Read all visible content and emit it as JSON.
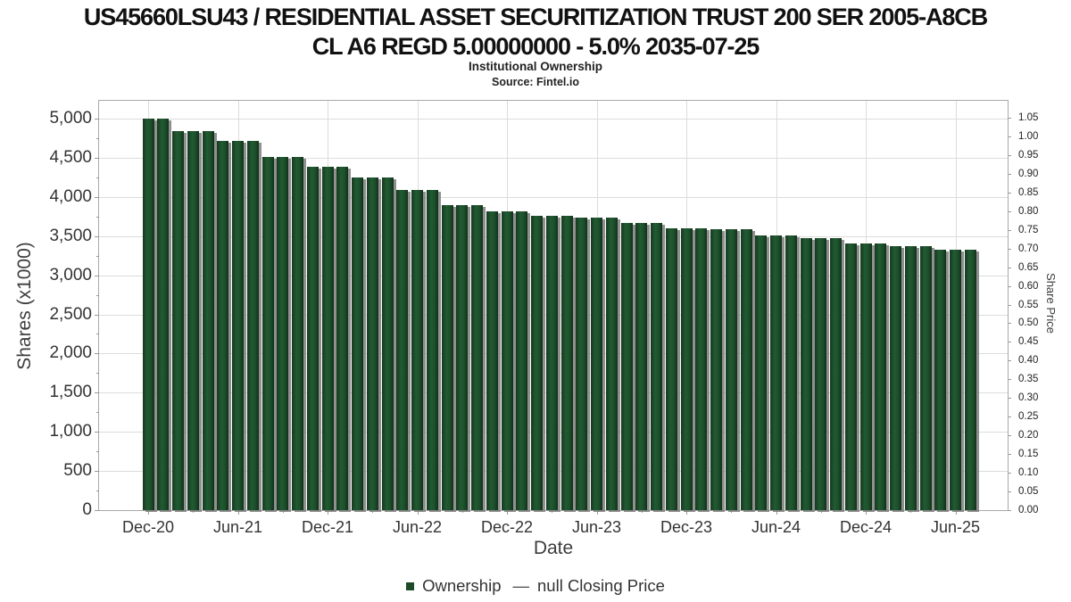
{
  "header": {
    "title_line1": "US45660LSU43 / RESIDENTIAL ASSET SECURITIZATION TRUST 200 SER 2005-A8CB",
    "title_line2": "CL A6 REGD 5.00000000 - 5.0% 2035-07-25",
    "subtitle": "Institutional Ownership",
    "source": "Source: Fintel.io"
  },
  "legend": {
    "items": [
      {
        "label": "Ownership",
        "marker": "square",
        "color": "#1d4b2a"
      },
      {
        "label": "null Closing Price",
        "marker": "dash",
        "glyph": "—",
        "color": "#4a4a4a"
      }
    ]
  },
  "colors": {
    "bar": "#1d4f2b",
    "bar_shadow": "#7d7d7d",
    "grid": "#dcdcdc",
    "plot_border": "#a9a9a9",
    "tick": "#999999",
    "label": "#333333"
  },
  "chart_data": {
    "type": "bar",
    "title": "US45660LSU43 / RESIDENTIAL ASSET SECURITIZATION TRUST 200 SER 2005-A8CB CL A6 REGD 5.00000000 - 5.0% 2035-07-25",
    "subtitle": "Institutional Ownership",
    "source": "Source: Fintel.io",
    "xlabel": "Date",
    "ylabel_left": "Shares (x1000)",
    "ylabel_right": "Share Price",
    "ylim_left": [
      0,
      5000
    ],
    "ylim_right": [
      0,
      1.05
    ],
    "grid": true,
    "legend_position": "bottom",
    "categories": [
      "Dec-20",
      "Jan-21",
      "Feb-21",
      "Mar-21",
      "Apr-21",
      "May-21",
      "Jun-21",
      "Jul-21",
      "Aug-21",
      "Sep-21",
      "Oct-21",
      "Nov-21",
      "Dec-21",
      "Jan-22",
      "Feb-22",
      "Mar-22",
      "Apr-22",
      "May-22",
      "Jun-22",
      "Jul-22",
      "Aug-22",
      "Sep-22",
      "Oct-22",
      "Nov-22",
      "Dec-22",
      "Jan-23",
      "Feb-23",
      "Mar-23",
      "Apr-23",
      "May-23",
      "Jun-23",
      "Jul-23",
      "Aug-23",
      "Sep-23",
      "Oct-23",
      "Nov-23",
      "Dec-23",
      "Jan-24",
      "Feb-24",
      "Mar-24",
      "Apr-24",
      "May-24",
      "Jun-24",
      "Jul-24",
      "Aug-24",
      "Sep-24",
      "Oct-24",
      "Nov-24",
      "Dec-24",
      "Jan-25",
      "Feb-25",
      "Mar-25",
      "Apr-25",
      "May-25",
      "Jun-25",
      "Jul-25"
    ],
    "series": [
      {
        "name": "Ownership",
        "axis": "left",
        "unit": "shares x1000",
        "values": [
          5000,
          5000,
          4840,
          4840,
          4840,
          4710,
          4710,
          4710,
          4510,
          4510,
          4510,
          4380,
          4380,
          4380,
          4250,
          4250,
          4250,
          4090,
          4090,
          4090,
          3890,
          3890,
          3890,
          3820,
          3820,
          3820,
          3760,
          3760,
          3760,
          3740,
          3740,
          3740,
          3670,
          3670,
          3670,
          3600,
          3600,
          3600,
          3585,
          3585,
          3585,
          3510,
          3510,
          3510,
          3470,
          3470,
          3470,
          3400,
          3400,
          3400,
          3370,
          3370,
          3370,
          3330,
          3330,
          3330
        ]
      },
      {
        "name": "null Closing Price",
        "axis": "right",
        "values": []
      }
    ],
    "y_left_ticks": [
      {
        "value": 0,
        "label": "0"
      },
      {
        "value": 500,
        "label": "500"
      },
      {
        "value": 1000,
        "label": "1,000"
      },
      {
        "value": 1500,
        "label": "1,500"
      },
      {
        "value": 2000,
        "label": "2,000"
      },
      {
        "value": 2500,
        "label": "2,500"
      },
      {
        "value": 3000,
        "label": "3,000"
      },
      {
        "value": 3500,
        "label": "3,500"
      },
      {
        "value": 4000,
        "label": "4,000"
      },
      {
        "value": 4500,
        "label": "4,500"
      },
      {
        "value": 5000,
        "label": "5,000"
      }
    ],
    "y_right_ticks": [
      {
        "value": 0.0,
        "label": "0.00"
      },
      {
        "value": 0.05,
        "label": "0.05"
      },
      {
        "value": 0.1,
        "label": "0.10"
      },
      {
        "value": 0.15,
        "label": "0.15"
      },
      {
        "value": 0.2,
        "label": "0.20"
      },
      {
        "value": 0.25,
        "label": "0.25"
      },
      {
        "value": 0.3,
        "label": "0.30"
      },
      {
        "value": 0.35,
        "label": "0.35"
      },
      {
        "value": 0.4,
        "label": "0.40"
      },
      {
        "value": 0.45,
        "label": "0.45"
      },
      {
        "value": 0.5,
        "label": "0.50"
      },
      {
        "value": 0.55,
        "label": "0.55"
      },
      {
        "value": 0.6,
        "label": "0.60"
      },
      {
        "value": 0.65,
        "label": "0.65"
      },
      {
        "value": 0.7,
        "label": "0.70"
      },
      {
        "value": 0.75,
        "label": "0.75"
      },
      {
        "value": 0.8,
        "label": "0.80"
      },
      {
        "value": 0.85,
        "label": "0.85"
      },
      {
        "value": 0.9,
        "label": "0.90"
      },
      {
        "value": 0.95,
        "label": "0.95"
      },
      {
        "value": 1.0,
        "label": "1.00"
      },
      {
        "value": 1.05,
        "label": "1.05"
      }
    ],
    "x_major_ticks": [
      {
        "month_index": 0,
        "label": "Dec-20"
      },
      {
        "month_index": 6,
        "label": "Jun-21"
      },
      {
        "month_index": 12,
        "label": "Dec-21"
      },
      {
        "month_index": 18,
        "label": "Jun-22"
      },
      {
        "month_index": 24,
        "label": "Dec-22"
      },
      {
        "month_index": 30,
        "label": "Jun-23"
      },
      {
        "month_index": 36,
        "label": "Dec-23"
      },
      {
        "month_index": 42,
        "label": "Jun-24"
      },
      {
        "month_index": 48,
        "label": "Dec-24"
      },
      {
        "month_index": 54,
        "label": "Jun-25"
      }
    ],
    "x_minor_tick_month_indexes": [
      3,
      9,
      15,
      21,
      27,
      33,
      39,
      45,
      51
    ]
  }
}
